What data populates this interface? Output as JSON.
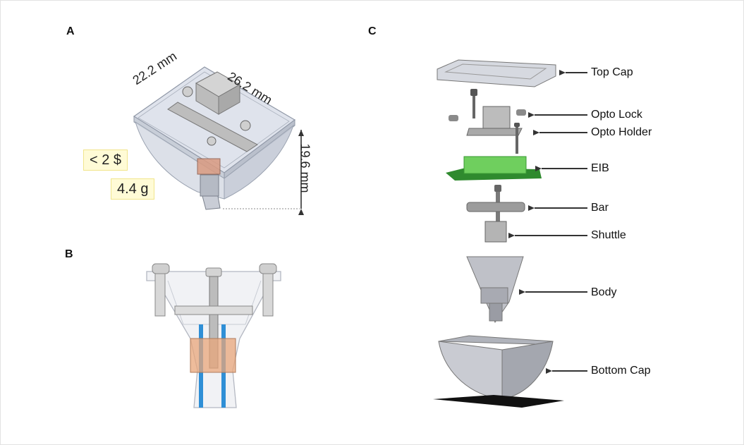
{
  "panels": {
    "a": {
      "label": "A",
      "dimensions": {
        "width": "22.2 mm",
        "depth": "26.2 mm",
        "height": "19.6 mm"
      },
      "cost": "< 2 $",
      "weight": "4.4 g"
    },
    "b": {
      "label": "B"
    },
    "c": {
      "label": "C",
      "parts": [
        "Top Cap",
        "Opto Lock",
        "Opto Holder",
        "EIB",
        "Bar",
        "Shuttle",
        "Body",
        "Bottom Cap"
      ]
    }
  },
  "colors": {
    "eib": "#6fcf5e",
    "shuttle": "#e8a67a",
    "electrode": "#2f8fd6",
    "body": "#c9cbd2"
  }
}
